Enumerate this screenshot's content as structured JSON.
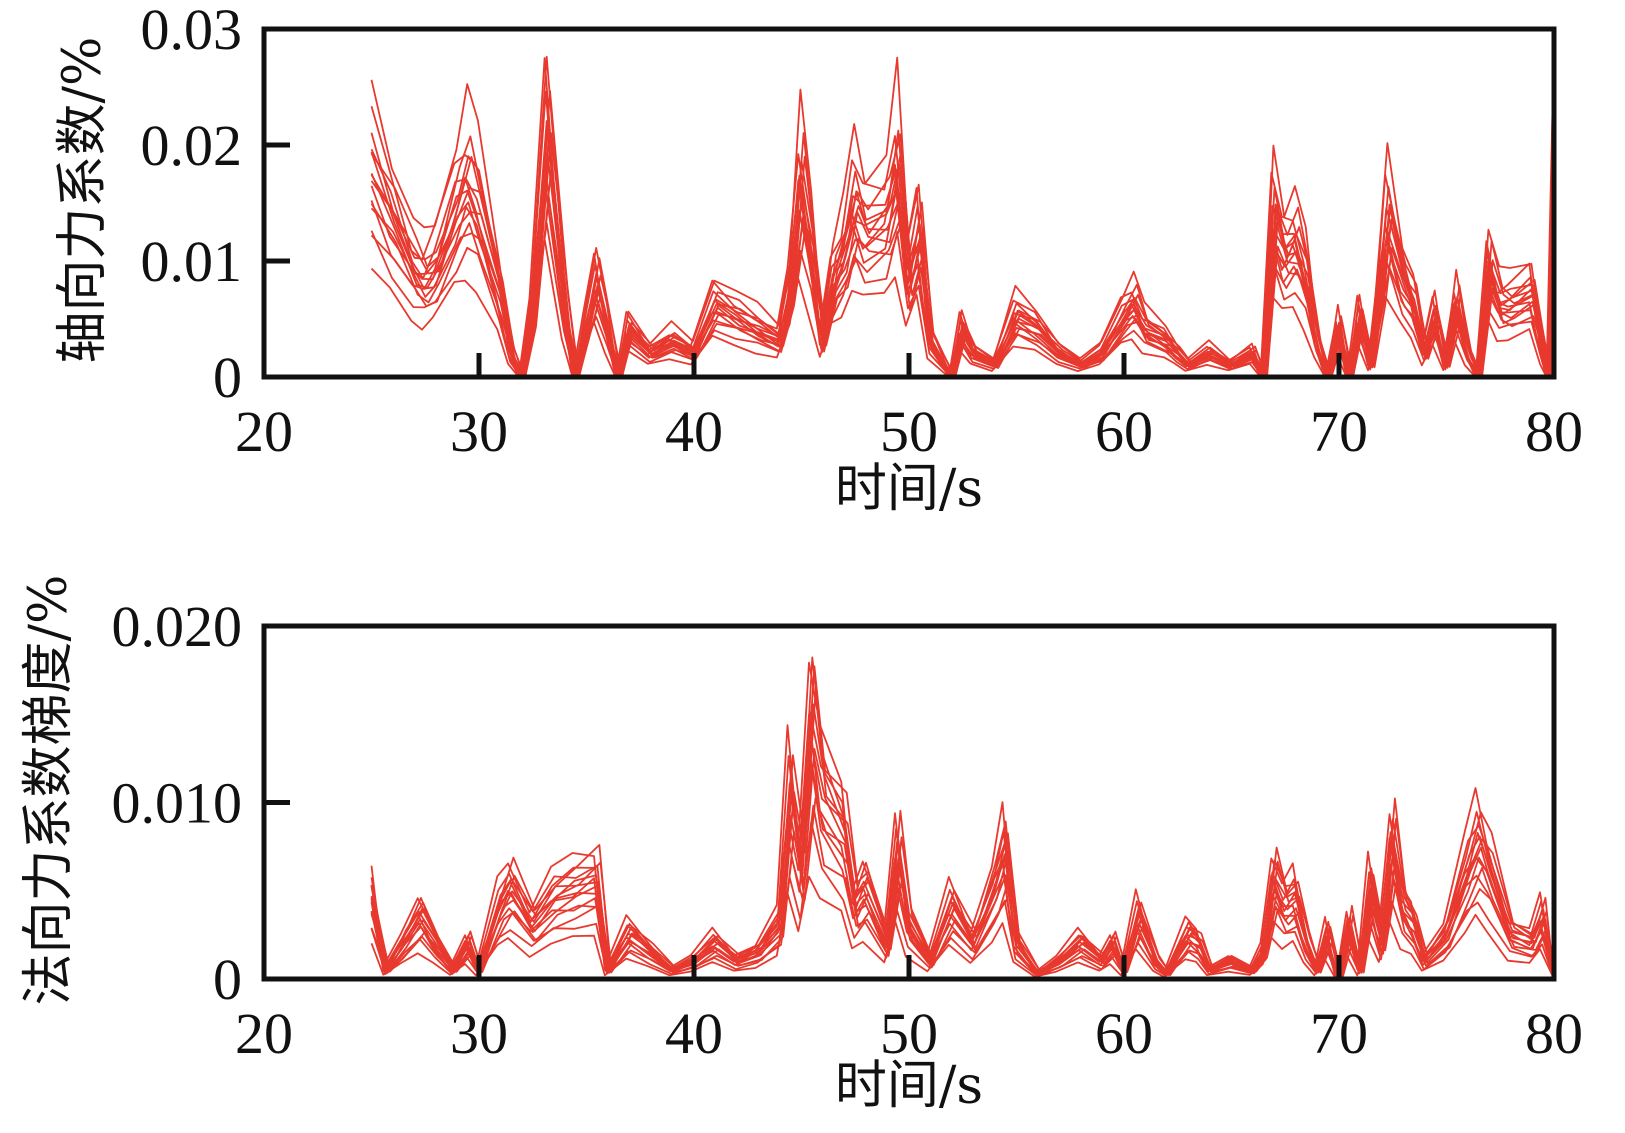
{
  "chart_data": [
    {
      "type": "line",
      "id": "axial",
      "title": "",
      "xlabel": "时间/s",
      "ylabel": "轴向力系数/%",
      "xlim": [
        20,
        80
      ],
      "ylim": [
        0,
        0.03
      ],
      "xticks": [
        20,
        30,
        40,
        50,
        60,
        70,
        80
      ],
      "xtick_labels": [
        "20",
        "30",
        "40",
        "50",
        "60",
        "70",
        "80"
      ],
      "yticks": [
        0,
        0.01,
        0.02,
        0.03
      ],
      "ytick_labels": [
        "0",
        "0.01",
        "0.02",
        "0.03"
      ],
      "grid": false,
      "line_color": "#e8392f",
      "series_note_scale_factors": [
        0.55,
        0.7,
        0.78,
        0.84,
        0.88,
        0.92,
        0.96,
        1.0,
        1.03,
        1.06,
        1.1,
        1.14,
        1.18,
        1.23,
        1.3,
        1.5
      ],
      "base_series_unit": 0.001,
      "base_series": [
        [
          25,
          17
        ],
        [
          26,
          13
        ],
        [
          27,
          9
        ],
        [
          27.5,
          8
        ],
        [
          28,
          9
        ],
        [
          29,
          14
        ],
        [
          29.5,
          16
        ],
        [
          30,
          14
        ],
        [
          31,
          7
        ],
        [
          31.5,
          2
        ],
        [
          32,
          0
        ],
        [
          32.5,
          5
        ],
        [
          33.2,
          20
        ],
        [
          34,
          6
        ],
        [
          34.5,
          0
        ],
        [
          35,
          4
        ],
        [
          35.5,
          8
        ],
        [
          36,
          4
        ],
        [
          36.5,
          0
        ],
        [
          37,
          4
        ],
        [
          38,
          2
        ],
        [
          39,
          3
        ],
        [
          40,
          2
        ],
        [
          41,
          6
        ],
        [
          42,
          5
        ],
        [
          43,
          4
        ],
        [
          44,
          3
        ],
        [
          44.5,
          7
        ],
        [
          45,
          16
        ],
        [
          45.5,
          10
        ],
        [
          46,
          3
        ],
        [
          46.5,
          8
        ],
        [
          47,
          10
        ],
        [
          47.5,
          14
        ],
        [
          48,
          12
        ],
        [
          49,
          13
        ],
        [
          49.5,
          17
        ],
        [
          50,
          8
        ],
        [
          50.5,
          12
        ],
        [
          51,
          3
        ],
        [
          52,
          0
        ],
        [
          52.5,
          4
        ],
        [
          53,
          2
        ],
        [
          54,
          1
        ],
        [
          55,
          5
        ],
        [
          56,
          4
        ],
        [
          57,
          2
        ],
        [
          58,
          1
        ],
        [
          59,
          2
        ],
        [
          60,
          5
        ],
        [
          60.5,
          6
        ],
        [
          61,
          4
        ],
        [
          62,
          3
        ],
        [
          62.5,
          2
        ],
        [
          63,
          1
        ],
        [
          64,
          2
        ],
        [
          65,
          1
        ],
        [
          66,
          2
        ],
        [
          66.5,
          0
        ],
        [
          67,
          13
        ],
        [
          67.5,
          10
        ],
        [
          68,
          11
        ],
        [
          68.5,
          8
        ],
        [
          69,
          3
        ],
        [
          69.5,
          0
        ],
        [
          70,
          4
        ],
        [
          70.5,
          0
        ],
        [
          71,
          5
        ],
        [
          71.5,
          1
        ],
        [
          72,
          8
        ],
        [
          72.3,
          13
        ],
        [
          73,
          8
        ],
        [
          73.5,
          6
        ],
        [
          74,
          2
        ],
        [
          74.5,
          5
        ],
        [
          75,
          1
        ],
        [
          75.5,
          6
        ],
        [
          76,
          2
        ],
        [
          76.5,
          0
        ],
        [
          77,
          9
        ],
        [
          77.5,
          6
        ],
        [
          78,
          6
        ],
        [
          79,
          7
        ],
        [
          79.5,
          2
        ],
        [
          79.8,
          0
        ],
        [
          80,
          21
        ]
      ]
    },
    {
      "type": "line",
      "id": "normal",
      "title": "",
      "xlabel": "时间/s",
      "ylabel": "法向力系数梯度/%",
      "xlim": [
        20,
        80
      ],
      "ylim": [
        0,
        0.02
      ],
      "xticks": [
        20,
        30,
        40,
        50,
        60,
        70,
        80
      ],
      "xtick_labels": [
        "20",
        "30",
        "40",
        "50",
        "60",
        "70",
        "80"
      ],
      "yticks": [
        0,
        0.01,
        0.02
      ],
      "ytick_labels": [
        "0",
        "0.010",
        "0.020"
      ],
      "grid": false,
      "line_color": "#e8392f",
      "series_note_scale_factors": [
        0.45,
        0.6,
        0.7,
        0.78,
        0.84,
        0.9,
        0.95,
        1.0,
        1.04,
        1.08,
        1.12,
        1.17,
        1.22,
        1.28,
        1.35
      ],
      "base_series_unit": 0.001,
      "base_series": [
        [
          25,
          4.5
        ],
        [
          25.7,
          0.5
        ],
        [
          26.5,
          2
        ],
        [
          27.3,
          3.5
        ],
        [
          28,
          2
        ],
        [
          28.8,
          0.5
        ],
        [
          29.5,
          2
        ],
        [
          30,
          0.5
        ],
        [
          31,
          4
        ],
        [
          31.5,
          5
        ],
        [
          32.5,
          3
        ],
        [
          33.5,
          4.5
        ],
        [
          34.5,
          5
        ],
        [
          35.5,
          5.5
        ],
        [
          36,
          0.5
        ],
        [
          37,
          2.5
        ],
        [
          38,
          1.5
        ],
        [
          39,
          0.5
        ],
        [
          40,
          1
        ],
        [
          41,
          2
        ],
        [
          42,
          1
        ],
        [
          43,
          1.5
        ],
        [
          44,
          3
        ],
        [
          44.5,
          10
        ],
        [
          45,
          6
        ],
        [
          45.5,
          14
        ],
        [
          46,
          10
        ],
        [
          47,
          8
        ],
        [
          47.5,
          4
        ],
        [
          48,
          5
        ],
        [
          49,
          2
        ],
        [
          49.5,
          7
        ],
        [
          50,
          3
        ],
        [
          51,
          1
        ],
        [
          52,
          4
        ],
        [
          53,
          2
        ],
        [
          54,
          5
        ],
        [
          54.5,
          7
        ],
        [
          55,
          2
        ],
        [
          56,
          0.3
        ],
        [
          57,
          1
        ],
        [
          58,
          2
        ],
        [
          59,
          1
        ],
        [
          59.5,
          2
        ],
        [
          60,
          0.5
        ],
        [
          60.7,
          3.5
        ],
        [
          61.5,
          1
        ],
        [
          62,
          0.3
        ],
        [
          63,
          2.5
        ],
        [
          63.5,
          2
        ],
        [
          64,
          0.5
        ],
        [
          65,
          1
        ],
        [
          66,
          0.5
        ],
        [
          66.5,
          1.5
        ],
        [
          67,
          5.5
        ],
        [
          67.5,
          4
        ],
        [
          68,
          4.5
        ],
        [
          68.5,
          2
        ],
        [
          69,
          0.5
        ],
        [
          69.5,
          2.5
        ],
        [
          70,
          0
        ],
        [
          70.5,
          3
        ],
        [
          71,
          0.5
        ],
        [
          71.5,
          5
        ],
        [
          72,
          2
        ],
        [
          72.5,
          7.5
        ],
        [
          73,
          4
        ],
        [
          73.5,
          3
        ],
        [
          74,
          1
        ],
        [
          75,
          2.5
        ],
        [
          76,
          6
        ],
        [
          76.5,
          7.5
        ],
        [
          77,
          6
        ],
        [
          78,
          2.5
        ],
        [
          79,
          2
        ],
        [
          79.5,
          3.5
        ],
        [
          80,
          0
        ]
      ]
    }
  ]
}
